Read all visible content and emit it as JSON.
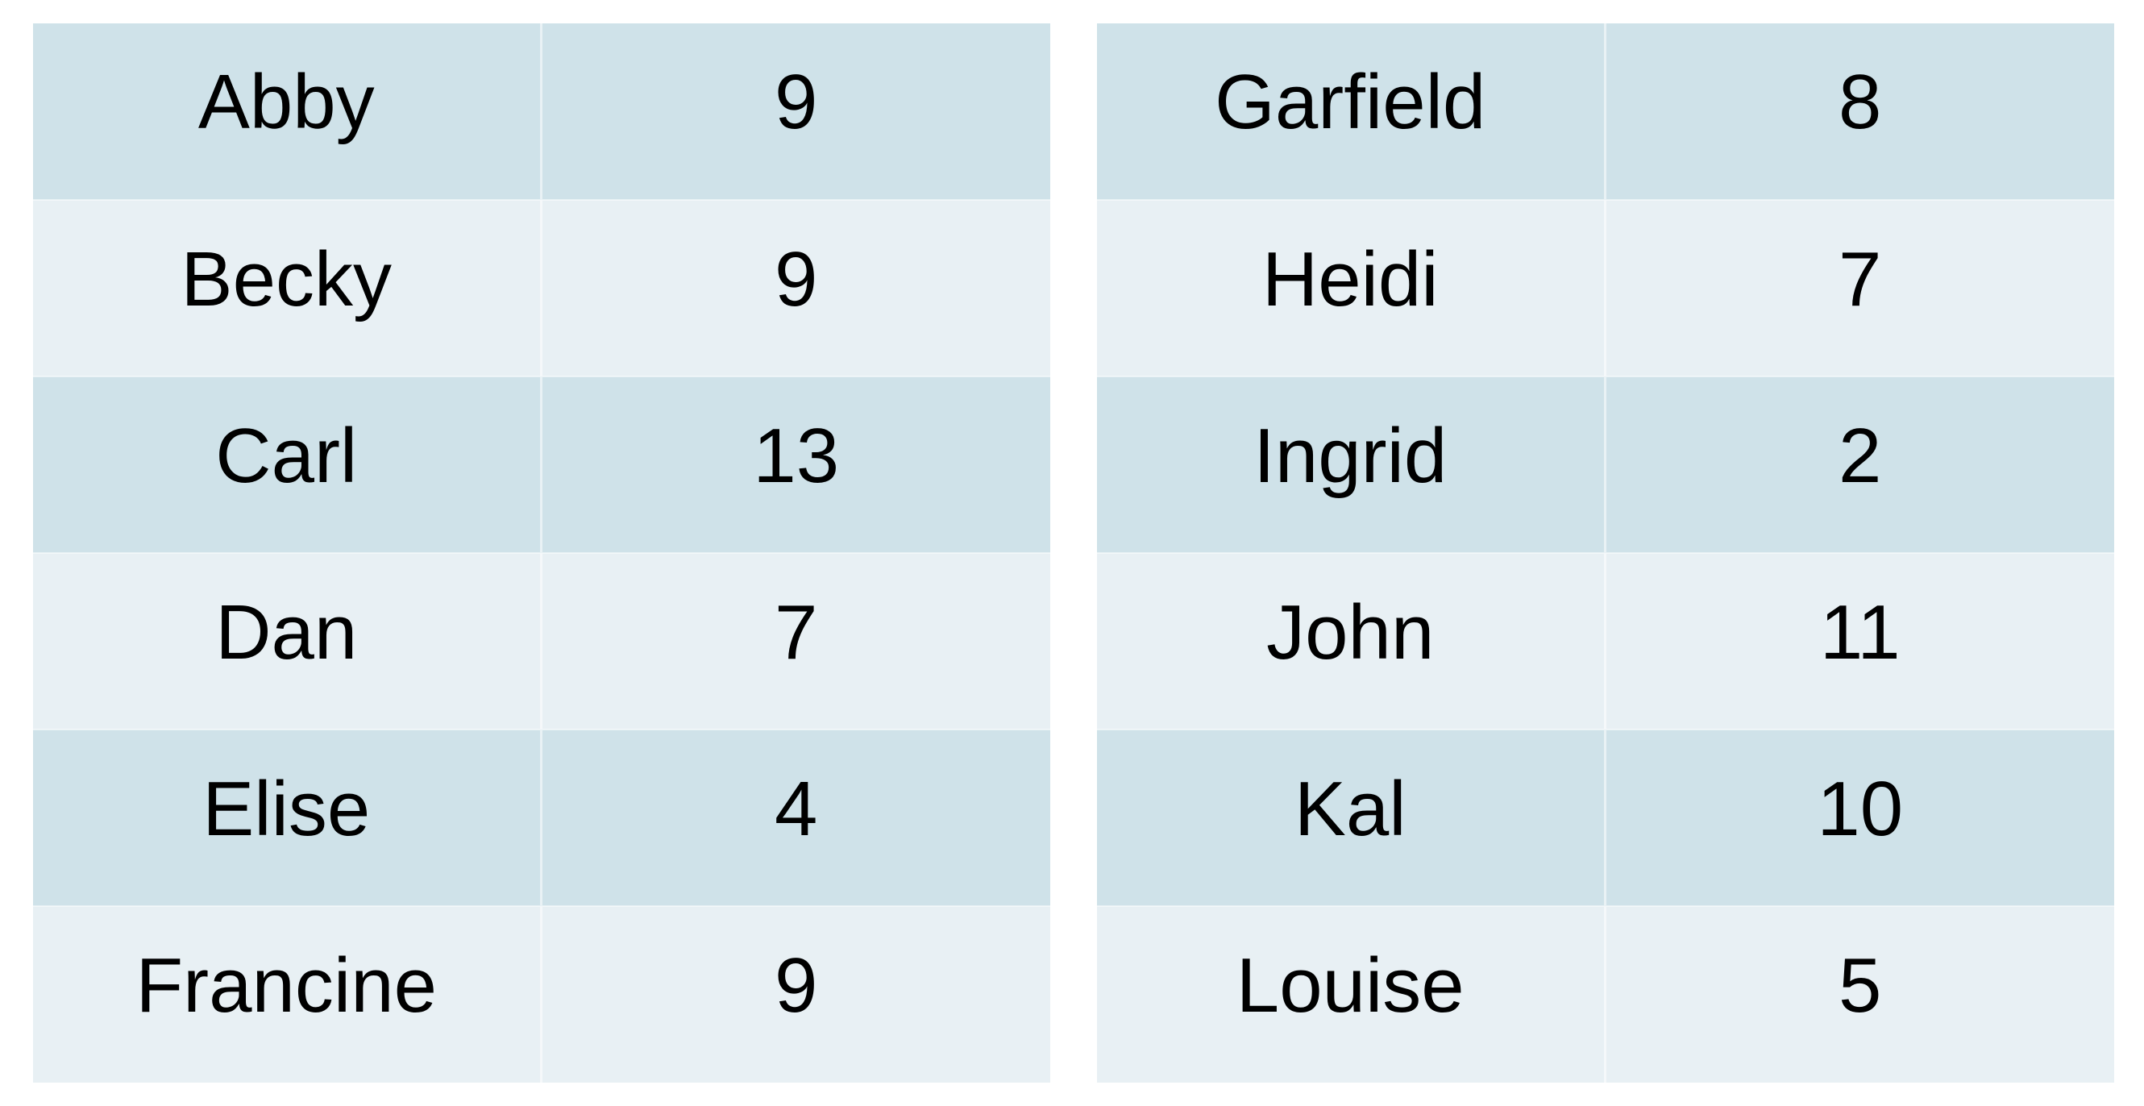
{
  "chart_data": {
    "type": "table",
    "tables": [
      {
        "rows": [
          {
            "name": "Abby",
            "value": 9
          },
          {
            "name": "Becky",
            "value": 9
          },
          {
            "name": "Carl",
            "value": 13
          },
          {
            "name": "Dan",
            "value": 7
          },
          {
            "name": "Elise",
            "value": 4
          },
          {
            "name": "Francine",
            "value": 9
          }
        ]
      },
      {
        "rows": [
          {
            "name": "Garfield",
            "value": 8
          },
          {
            "name": "Heidi",
            "value": 7
          },
          {
            "name": "Ingrid",
            "value": 2
          },
          {
            "name": "John",
            "value": 11
          },
          {
            "name": "Kal",
            "value": 10
          },
          {
            "name": "Louise",
            "value": 5
          }
        ]
      }
    ],
    "colors": {
      "band_dark": "#cfe2e9",
      "band_light": "#e8f0f4",
      "text": "#000000"
    }
  }
}
